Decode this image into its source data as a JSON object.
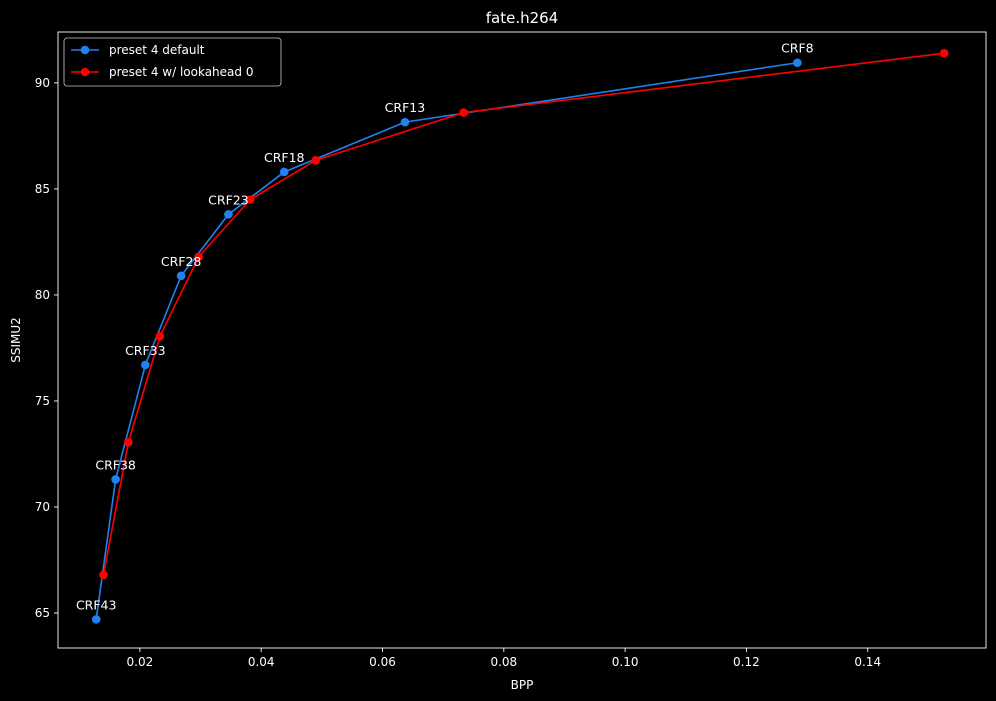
{
  "chart_data": {
    "type": "line",
    "title": "fate.h264",
    "xlabel": "BPP",
    "ylabel": "SSIMU2",
    "xlim": [
      0.0065,
      0.1595
    ],
    "ylim": [
      63.35,
      92.4
    ],
    "xticks": [
      0.02,
      0.04,
      0.06,
      0.08,
      0.1,
      0.12,
      0.14
    ],
    "xtick_labels": [
      "0.02",
      "0.04",
      "0.06",
      "0.08",
      "0.10",
      "0.12",
      "0.14"
    ],
    "yticks": [
      65,
      70,
      75,
      80,
      85,
      90
    ],
    "ytick_labels": [
      "65",
      "70",
      "75",
      "80",
      "85",
      "90"
    ],
    "grid": false,
    "legend_position": "top-left",
    "background": "#000000",
    "foreground": "#ffffff",
    "series": [
      {
        "name": "preset 4 default",
        "color": "#1f82f0",
        "x": [
          0.0128,
          0.016,
          0.0209,
          0.0268,
          0.0346,
          0.0438,
          0.0637,
          0.1284
        ],
        "y": [
          64.7,
          71.3,
          76.7,
          80.9,
          83.8,
          85.8,
          88.15,
          90.95
        ],
        "point_labels": [
          "CRF43",
          "CRF38",
          "CRF33",
          "CRF28",
          "CRF23",
          "CRF18",
          "CRF13",
          "CRF8"
        ]
      },
      {
        "name": "preset 4 w/ lookahead 0",
        "color": "#ff0000",
        "x": [
          0.014,
          0.0181,
          0.0233,
          0.0297,
          0.0382,
          0.049,
          0.0734,
          0.1526
        ],
        "y": [
          66.8,
          73.05,
          78.05,
          81.8,
          84.5,
          86.35,
          88.6,
          91.4
        ]
      }
    ]
  }
}
